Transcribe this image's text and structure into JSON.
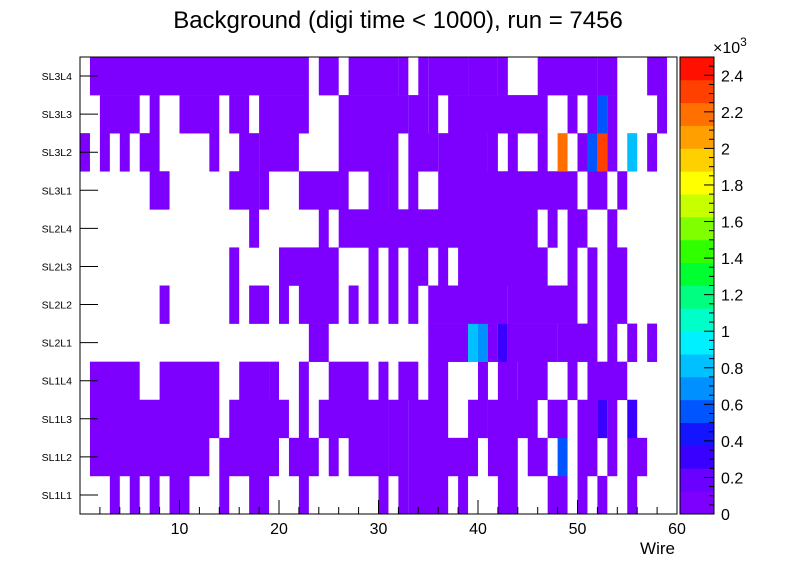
{
  "chart_data": {
    "type": "heatmap",
    "title": "Background (digi time < 1000), run = 7456",
    "xlabel": "Wire",
    "ylabel": "",
    "xlim": [
      0,
      60
    ],
    "x_ticks": [
      "10",
      "20",
      "30",
      "40",
      "50",
      "60"
    ],
    "y_categories": [
      "SL1L1",
      "SL1L2",
      "SL1L3",
      "SL1L4",
      "SL2L1",
      "SL2L2",
      "SL2L3",
      "SL2L4",
      "SL3L1",
      "SL3L2",
      "SL3L3",
      "SL3L4"
    ],
    "color_scale": {
      "min": 0,
      "max": 2500,
      "multiplier_label": "×10",
      "multiplier_exponent": "3",
      "tick_labels": [
        "0",
        "0.2",
        "0.4",
        "0.6",
        "0.8",
        "1",
        "1.2",
        "1.4",
        "1.6",
        "1.8",
        "2",
        "2.2",
        "2.4"
      ],
      "tick_values": [
        0,
        200,
        400,
        600,
        800,
        1000,
        1200,
        1400,
        1600,
        1800,
        2000,
        2200,
        2400
      ],
      "palette": [
        "#7d00ff",
        "#6a00ff",
        "#3a00ff",
        "#1414ff",
        "#0055ff",
        "#0090ff",
        "#00c0ff",
        "#00f0ff",
        "#00ffc8",
        "#00ff80",
        "#00ff30",
        "#30ff00",
        "#80ff00",
        "#c8ff00",
        "#ffff00",
        "#ffd000",
        "#ffa000",
        "#ff7000",
        "#ff4000",
        "#ff1000"
      ]
    },
    "rows": [
      {
        "layer": "SL1L1",
        "segments": [
          [
            3,
            3,
            40
          ],
          [
            5,
            5,
            40
          ],
          [
            7,
            7,
            40
          ],
          [
            9,
            10,
            40
          ],
          [
            14,
            14,
            40
          ],
          [
            17,
            18,
            40
          ],
          [
            22,
            22,
            40
          ],
          [
            30,
            30,
            40
          ],
          [
            32,
            32,
            40
          ],
          [
            33,
            36,
            40
          ],
          [
            38,
            38,
            40
          ],
          [
            42,
            43,
            40
          ],
          [
            47,
            48,
            40
          ],
          [
            50,
            50,
            40
          ],
          [
            52,
            52,
            40
          ],
          [
            55,
            55,
            40
          ]
        ]
      },
      {
        "layer": "SL1L2",
        "segments": [
          [
            1,
            12,
            40
          ],
          [
            14,
            19,
            40
          ],
          [
            21,
            23,
            40
          ],
          [
            25,
            25,
            40
          ],
          [
            27,
            29,
            40
          ],
          [
            30,
            30,
            40
          ],
          [
            31,
            32,
            40
          ],
          [
            33,
            39,
            40
          ],
          [
            41,
            43,
            40
          ],
          [
            45,
            46,
            40
          ],
          [
            48,
            48,
            600
          ],
          [
            50,
            51,
            40
          ],
          [
            53,
            53,
            40
          ],
          [
            55,
            56,
            40
          ]
        ]
      },
      {
        "layer": "SL1L3",
        "segments": [
          [
            1,
            13,
            40
          ],
          [
            15,
            20,
            40
          ],
          [
            22,
            22,
            40
          ],
          [
            24,
            30,
            40
          ],
          [
            31,
            32,
            40
          ],
          [
            33,
            36,
            40
          ],
          [
            39,
            40,
            40
          ],
          [
            41,
            45,
            40
          ],
          [
            47,
            48,
            40
          ],
          [
            50,
            51,
            40
          ],
          [
            52,
            52,
            300
          ],
          [
            53,
            53,
            40
          ],
          [
            55,
            55,
            300
          ]
        ]
      },
      {
        "layer": "SL1L4",
        "segments": [
          [
            1,
            5,
            40
          ],
          [
            8,
            13,
            40
          ],
          [
            16,
            18,
            40
          ],
          [
            19,
            19,
            40
          ],
          [
            22,
            22,
            40
          ],
          [
            25,
            28,
            40
          ],
          [
            30,
            30,
            40
          ],
          [
            32,
            33,
            40
          ],
          [
            35,
            36,
            40
          ],
          [
            40,
            40,
            40
          ],
          [
            42,
            43,
            40
          ],
          [
            44,
            46,
            40
          ],
          [
            49,
            49,
            40
          ],
          [
            51,
            54,
            40
          ]
        ]
      },
      {
        "layer": "SL2L1",
        "segments": [
          [
            23,
            24,
            40
          ],
          [
            35,
            38,
            40
          ],
          [
            39,
            39,
            800
          ],
          [
            40,
            40,
            700
          ],
          [
            41,
            41,
            40
          ],
          [
            42,
            42,
            300
          ],
          [
            43,
            47,
            40
          ],
          [
            48,
            51,
            40
          ],
          [
            53,
            53,
            40
          ],
          [
            55,
            55,
            40
          ],
          [
            57,
            57,
            40
          ]
        ]
      },
      {
        "layer": "SL2L2",
        "segments": [
          [
            8,
            8,
            40
          ],
          [
            15,
            15,
            40
          ],
          [
            17,
            18,
            40
          ],
          [
            20,
            20,
            40
          ],
          [
            22,
            25,
            40
          ],
          [
            27,
            27,
            40
          ],
          [
            29,
            29,
            40
          ],
          [
            31,
            31,
            40
          ],
          [
            33,
            33,
            40
          ],
          [
            35,
            42,
            40
          ],
          [
            43,
            49,
            40
          ],
          [
            51,
            51,
            40
          ],
          [
            53,
            54,
            40
          ]
        ]
      },
      {
        "layer": "SL2L3",
        "segments": [
          [
            15,
            15,
            40
          ],
          [
            20,
            25,
            40
          ],
          [
            29,
            29,
            40
          ],
          [
            31,
            31,
            40
          ],
          [
            33,
            34,
            40
          ],
          [
            36,
            36,
            40
          ],
          [
            38,
            46,
            40
          ],
          [
            49,
            49,
            40
          ],
          [
            51,
            51,
            40
          ],
          [
            53,
            54,
            40
          ]
        ]
      },
      {
        "layer": "SL2L4",
        "segments": [
          [
            17,
            17,
            40
          ],
          [
            24,
            24,
            40
          ],
          [
            26,
            45,
            40
          ],
          [
            47,
            47,
            40
          ],
          [
            49,
            50,
            40
          ],
          [
            53,
            53,
            40
          ]
        ]
      },
      {
        "layer": "SL3L1",
        "segments": [
          [
            7,
            8,
            40
          ],
          [
            15,
            17,
            40
          ],
          [
            18,
            18,
            40
          ],
          [
            22,
            26,
            40
          ],
          [
            29,
            30,
            40
          ],
          [
            31,
            31,
            40
          ],
          [
            33,
            33,
            40
          ],
          [
            36,
            49,
            40
          ],
          [
            51,
            52,
            40
          ],
          [
            54,
            54,
            40
          ]
        ]
      },
      {
        "layer": "SL3L2",
        "segments": [
          [
            0,
            0,
            40
          ],
          [
            2,
            2,
            40
          ],
          [
            4,
            4,
            40
          ],
          [
            6,
            7,
            40
          ],
          [
            13,
            13,
            40
          ],
          [
            16,
            17,
            40
          ],
          [
            18,
            21,
            40
          ],
          [
            26,
            31,
            40
          ],
          [
            33,
            35,
            40
          ],
          [
            36,
            40,
            40
          ],
          [
            41,
            41,
            40
          ],
          [
            43,
            43,
            40
          ],
          [
            46,
            46,
            40
          ],
          [
            48,
            48,
            2200
          ],
          [
            50,
            50,
            40
          ],
          [
            51,
            51,
            600
          ],
          [
            52,
            52,
            2300
          ],
          [
            53,
            53,
            40
          ],
          [
            55,
            55,
            800
          ],
          [
            57,
            57,
            40
          ]
        ]
      },
      {
        "layer": "SL3L3",
        "segments": [
          [
            2,
            5,
            40
          ],
          [
            7,
            7,
            40
          ],
          [
            10,
            13,
            40
          ],
          [
            15,
            16,
            40
          ],
          [
            18,
            22,
            40
          ],
          [
            26,
            32,
            40
          ],
          [
            33,
            34,
            40
          ],
          [
            35,
            35,
            40
          ],
          [
            37,
            46,
            40
          ],
          [
            49,
            49,
            40
          ],
          [
            51,
            51,
            40
          ],
          [
            52,
            52,
            500
          ],
          [
            53,
            53,
            40
          ],
          [
            58,
            58,
            40
          ]
        ]
      },
      {
        "layer": "SL3L4",
        "segments": [
          [
            1,
            22,
            40
          ],
          [
            24,
            25,
            40
          ],
          [
            27,
            31,
            40
          ],
          [
            32,
            32,
            40
          ],
          [
            34,
            34,
            40
          ],
          [
            35,
            38,
            40
          ],
          [
            39,
            41,
            40
          ],
          [
            42,
            42,
            40
          ],
          [
            46,
            49,
            40
          ],
          [
            50,
            51,
            40
          ],
          [
            52,
            53,
            40
          ],
          [
            57,
            58,
            40
          ]
        ]
      }
    ]
  }
}
